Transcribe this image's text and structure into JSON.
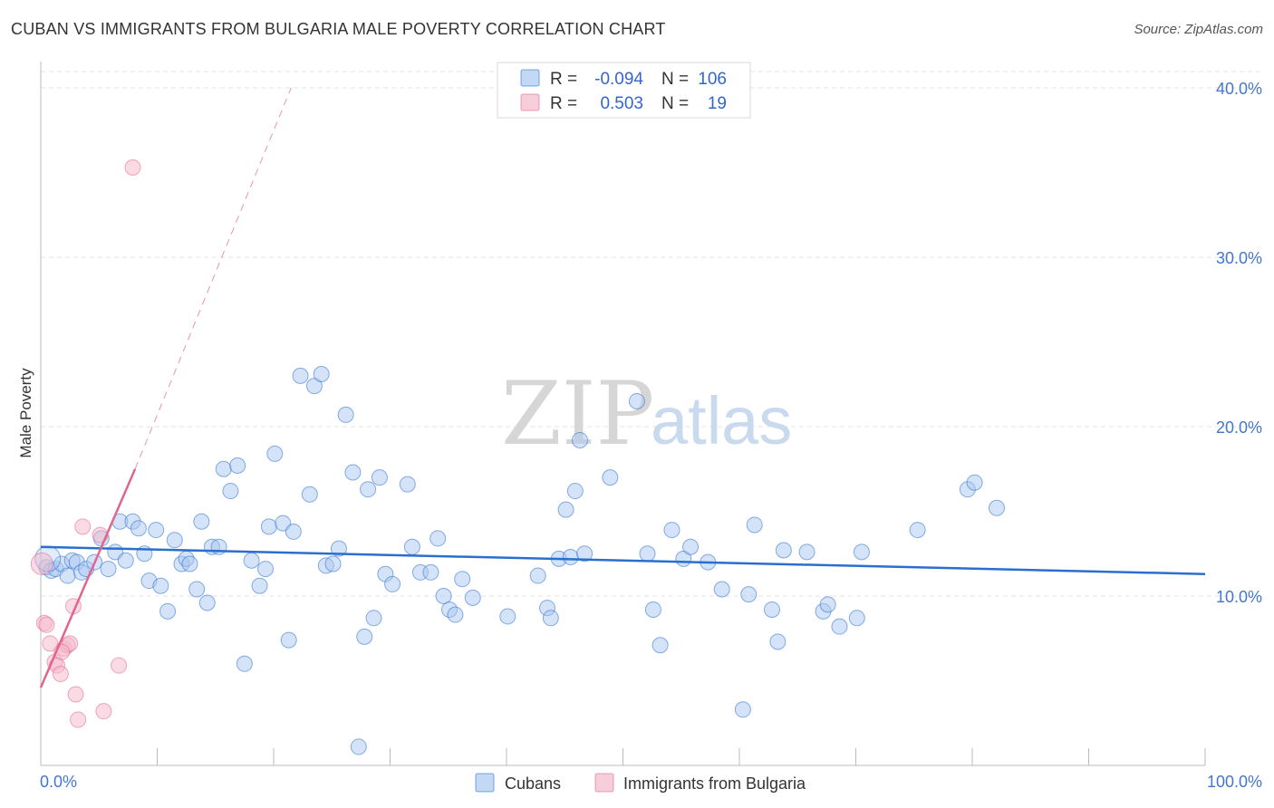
{
  "title": "CUBAN VS IMMIGRANTS FROM BULGARIA MALE POVERTY CORRELATION CHART",
  "source": "Source: ZipAtlas.com",
  "watermark": {
    "zip": "ZIP",
    "atlas": "atlas"
  },
  "legend_top": [
    {
      "r_label": "R =",
      "r_value": "-0.094",
      "n_label": "N =",
      "n_value": "106"
    },
    {
      "r_label": "R =",
      "r_value": "0.503",
      "n_label": "N =",
      "n_value": "19"
    }
  ],
  "chart_data": {
    "type": "scatter",
    "title": "CUBAN VS IMMIGRANTS FROM BULGARIA MALE POVERTY CORRELATION CHART",
    "xlabel": "",
    "ylabel": "Male Poverty",
    "xlim": [
      0,
      100
    ],
    "ylim": [
      0,
      40
    ],
    "x_tick_labels": [
      "0.0%",
      "100.0%"
    ],
    "y_ticks": [
      10,
      20,
      30,
      40
    ],
    "y_tick_labels": [
      "10.0%",
      "20.0%",
      "30.0%",
      "40.0%"
    ],
    "colors": {
      "cubans": "#a9c8f0",
      "cubans_line": "#2a6fcf",
      "bulgaria": "#f5b8ca",
      "bulgaria_line": "#e0668f"
    },
    "series": [
      {
        "name": "Cubans",
        "R": -0.094,
        "N": 106,
        "trend": {
          "x0": 0,
          "y0": 12.9,
          "x1": 100,
          "y1": 11.3
        },
        "points": [
          [
            0.5,
            11.7
          ],
          [
            0.9,
            11.5
          ],
          [
            1.3,
            11.6
          ],
          [
            1.8,
            11.9
          ],
          [
            2.3,
            11.2
          ],
          [
            2.7,
            12.1
          ],
          [
            3.1,
            12.0
          ],
          [
            3.5,
            11.4
          ],
          [
            3.9,
            11.6
          ],
          [
            4.6,
            12.0
          ],
          [
            5.2,
            13.4
          ],
          [
            5.8,
            11.6
          ],
          [
            6.4,
            12.6
          ],
          [
            6.8,
            14.4
          ],
          [
            7.3,
            12.1
          ],
          [
            7.9,
            14.4
          ],
          [
            8.4,
            14.0
          ],
          [
            8.9,
            12.5
          ],
          [
            9.3,
            10.9
          ],
          [
            9.9,
            13.9
          ],
          [
            10.3,
            10.6
          ],
          [
            10.9,
            9.1
          ],
          [
            11.5,
            13.3
          ],
          [
            12.1,
            11.9
          ],
          [
            12.5,
            12.2
          ],
          [
            12.8,
            11.9
          ],
          [
            13.4,
            10.4
          ],
          [
            13.8,
            14.4
          ],
          [
            14.3,
            9.6
          ],
          [
            14.7,
            12.9
          ],
          [
            15.3,
            12.9
          ],
          [
            15.7,
            17.5
          ],
          [
            16.3,
            16.2
          ],
          [
            16.9,
            17.7
          ],
          [
            17.5,
            6.0
          ],
          [
            18.1,
            12.1
          ],
          [
            18.8,
            10.6
          ],
          [
            19.3,
            11.6
          ],
          [
            19.6,
            14.1
          ],
          [
            20.1,
            18.4
          ],
          [
            20.8,
            14.3
          ],
          [
            21.3,
            7.4
          ],
          [
            21.7,
            13.8
          ],
          [
            22.3,
            23.0
          ],
          [
            23.1,
            16.0
          ],
          [
            23.5,
            22.4
          ],
          [
            24.1,
            23.1
          ],
          [
            24.5,
            11.8
          ],
          [
            25.1,
            11.9
          ],
          [
            25.6,
            12.8
          ],
          [
            26.2,
            20.7
          ],
          [
            26.8,
            17.3
          ],
          [
            27.3,
            1.1
          ],
          [
            27.8,
            7.6
          ],
          [
            28.1,
            16.3
          ],
          [
            28.6,
            8.7
          ],
          [
            29.1,
            17.0
          ],
          [
            29.6,
            11.3
          ],
          [
            30.2,
            10.7
          ],
          [
            31.5,
            16.6
          ],
          [
            31.9,
            12.9
          ],
          [
            32.6,
            11.4
          ],
          [
            33.5,
            11.4
          ],
          [
            34.1,
            13.4
          ],
          [
            34.6,
            10.0
          ],
          [
            35.1,
            9.2
          ],
          [
            35.6,
            8.9
          ],
          [
            36.2,
            11.0
          ],
          [
            37.1,
            9.9
          ],
          [
            40.1,
            8.8
          ],
          [
            42.7,
            11.2
          ],
          [
            43.5,
            9.3
          ],
          [
            43.8,
            8.7
          ],
          [
            44.5,
            12.2
          ],
          [
            45.1,
            15.1
          ],
          [
            45.5,
            12.3
          ],
          [
            45.9,
            16.2
          ],
          [
            46.3,
            19.2
          ],
          [
            46.7,
            12.5
          ],
          [
            48.9,
            17.0
          ],
          [
            51.2,
            21.5
          ],
          [
            52.1,
            12.5
          ],
          [
            52.6,
            9.2
          ],
          [
            53.2,
            7.1
          ],
          [
            54.2,
            13.9
          ],
          [
            55.2,
            12.2
          ],
          [
            55.8,
            12.9
          ],
          [
            57.3,
            12.0
          ],
          [
            58.5,
            10.4
          ],
          [
            60.3,
            3.3
          ],
          [
            60.8,
            10.1
          ],
          [
            61.3,
            14.2
          ],
          [
            62.8,
            9.2
          ],
          [
            63.3,
            7.3
          ],
          [
            63.8,
            12.7
          ],
          [
            65.8,
            12.6
          ],
          [
            67.2,
            9.1
          ],
          [
            67.6,
            9.5
          ],
          [
            68.6,
            8.2
          ],
          [
            70.1,
            8.7
          ],
          [
            70.5,
            12.6
          ],
          [
            75.3,
            13.9
          ],
          [
            79.6,
            16.3
          ],
          [
            80.2,
            16.7
          ],
          [
            82.1,
            15.2
          ],
          [
            0.6,
            12.2
          ]
        ]
      },
      {
        "name": "Immigrants from Bulgaria",
        "R": 0.503,
        "N": 19,
        "trend": {
          "x0": 0,
          "y0": 4.6,
          "x1": 8.1,
          "y1": 17.5,
          "dashed_to": {
            "x": 21.5,
            "y": 40.0
          }
        },
        "points": [
          [
            0.1,
            11.9
          ],
          [
            0.3,
            8.4
          ],
          [
            0.5,
            8.3
          ],
          [
            0.8,
            7.2
          ],
          [
            1.2,
            6.1
          ],
          [
            1.4,
            5.9
          ],
          [
            1.7,
            5.4
          ],
          [
            2.0,
            6.9
          ],
          [
            2.3,
            7.1
          ],
          [
            2.5,
            7.2
          ],
          [
            2.8,
            9.4
          ],
          [
            3.0,
            4.2
          ],
          [
            3.2,
            2.7
          ],
          [
            3.6,
            14.1
          ],
          [
            5.1,
            13.6
          ],
          [
            5.4,
            3.2
          ],
          [
            6.7,
            5.9
          ],
          [
            7.9,
            35.3
          ],
          [
            1.8,
            6.7
          ]
        ]
      }
    ]
  },
  "legend_bottom": [
    {
      "label": "Cubans"
    },
    {
      "label": "Immigrants from Bulgaria"
    }
  ]
}
